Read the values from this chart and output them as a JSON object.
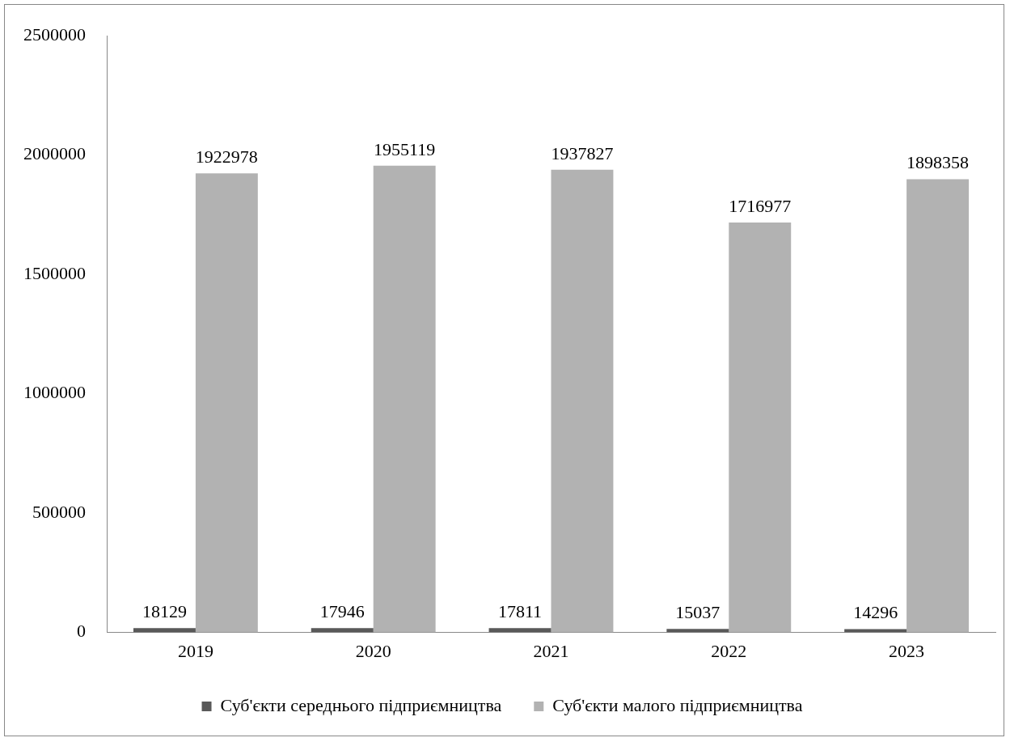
{
  "chart_data": {
    "type": "bar",
    "categories": [
      "2019",
      "2020",
      "2021",
      "2022",
      "2023"
    ],
    "series": [
      {
        "name": "Суб'єкти середнього підприємництва",
        "color": "#595959",
        "values": [
          18129,
          17946,
          17811,
          15037,
          14296
        ]
      },
      {
        "name": "Суб'єкти малого підприємництва",
        "color": "#b2b2b2",
        "values": [
          1922978,
          1955119,
          1937827,
          1716977,
          1898358
        ]
      }
    ],
    "ylim": [
      0,
      2500000
    ],
    "yticks": [
      0,
      500000,
      1000000,
      1500000,
      2000000,
      2500000
    ],
    "grid": false,
    "legend": "bottom",
    "data_labels": true
  }
}
